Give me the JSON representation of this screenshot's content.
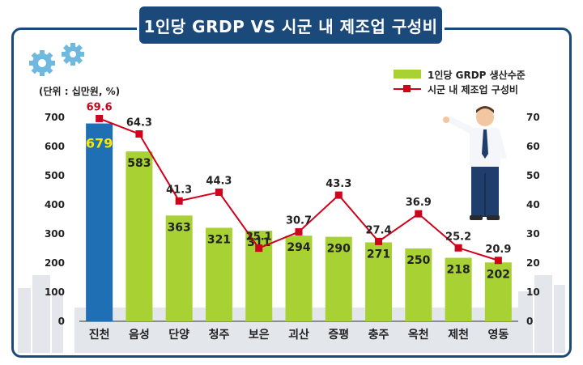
{
  "title": "1인당 GRDP VS 시군 내 제조업 구성비",
  "unit_label": "(단위 : 십만원, %)",
  "chart_data": {
    "type": "bar",
    "categories": [
      "진천",
      "음성",
      "단양",
      "청주",
      "보은",
      "괴산",
      "증평",
      "충주",
      "옥천",
      "제천",
      "영동"
    ],
    "series": [
      {
        "name": "1인당 GRDP 생산수준",
        "type": "bar",
        "axis": "left",
        "values": [
          679,
          583,
          363,
          321,
          311,
          294,
          290,
          271,
          250,
          218,
          202
        ],
        "color": "#a8d234",
        "highlight_color": "#1f6fb5",
        "highlight_index": 0
      },
      {
        "name": "시군 내 제조업 구성비",
        "type": "line",
        "axis": "right",
        "values": [
          69.6,
          64.3,
          41.3,
          44.3,
          25.1,
          30.7,
          43.3,
          27.4,
          36.9,
          25.2,
          20.9
        ],
        "color": "#d0021b"
      }
    ],
    "y_left": {
      "ticks": [
        "0",
        "100",
        "200",
        "300",
        "400",
        "500",
        "600",
        "700"
      ],
      "lim": [
        0,
        700
      ]
    },
    "y_right": {
      "ticks": [
        "0",
        "10",
        "20",
        "30",
        "40",
        "50",
        "60",
        "70"
      ],
      "lim": [
        0,
        70
      ]
    },
    "legend_position": "top-right",
    "grid": false
  },
  "colors": {
    "frame": "#1b4a7a",
    "bar": "#a8d234",
    "bar_highlight": "#1f6fb5",
    "line": "#d0021b",
    "highlight_label": "#ffe600"
  }
}
